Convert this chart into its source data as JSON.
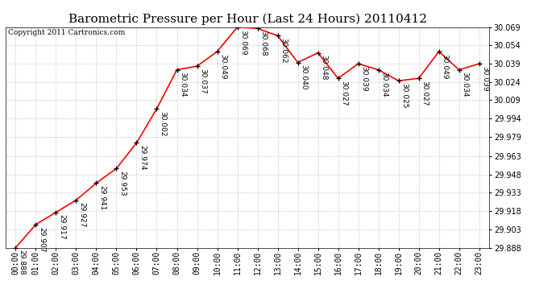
{
  "title": "Barometric Pressure per Hour (Last 24 Hours) 20110412",
  "copyright": "Copyright 2011 Cartronics.com",
  "hours": [
    "00:00",
    "01:00",
    "02:00",
    "03:00",
    "04:00",
    "05:00",
    "06:00",
    "07:00",
    "08:00",
    "09:00",
    "10:00",
    "11:00",
    "12:00",
    "13:00",
    "14:00",
    "15:00",
    "16:00",
    "17:00",
    "18:00",
    "19:00",
    "20:00",
    "21:00",
    "22:00",
    "23:00"
  ],
  "values": [
    29.888,
    29.907,
    29.917,
    29.927,
    29.941,
    29.953,
    29.974,
    30.002,
    30.034,
    30.037,
    30.049,
    30.069,
    30.068,
    30.062,
    30.04,
    30.048,
    30.027,
    30.039,
    30.034,
    30.025,
    30.027,
    30.049,
    30.034,
    30.039
  ],
  "ylim_min": 29.888,
  "ylim_max": 30.069,
  "yticks": [
    29.888,
    29.903,
    29.918,
    29.933,
    29.948,
    29.963,
    29.979,
    29.994,
    30.009,
    30.024,
    30.039,
    30.054,
    30.069
  ],
  "line_color": "red",
  "marker_color": "black",
  "bg_color": "white",
  "grid_color": "#cccccc",
  "title_fontsize": 11,
  "label_fontsize": 7,
  "copyright_fontsize": 6.5,
  "annotation_fontsize": 6.5
}
